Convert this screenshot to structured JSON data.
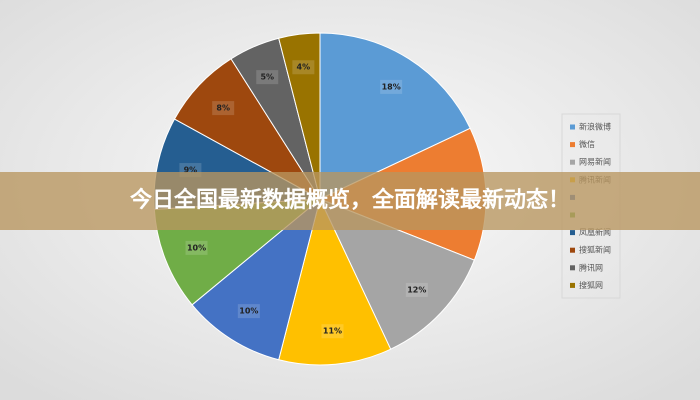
{
  "chart_data": {
    "type": "pie",
    "banner": "今日全国最新数据概览，全面解读最新动态！",
    "series": [
      {
        "name": "新浪微博",
        "color": "#5b9bd5"
      },
      {
        "name": "微信",
        "color": "#ed7d31"
      },
      {
        "name": "网易新闻",
        "color": "#a5a5a5"
      },
      {
        "name": "腾讯新闻",
        "color": "#ffc000"
      },
      {
        "name": null,
        "color": "#4472c4"
      },
      {
        "name": null,
        "color": "#70ad47"
      },
      {
        "name": "凤凰新闻",
        "color": "#255e91"
      },
      {
        "name": "搜狐新闻",
        "color": "#9e480e"
      },
      {
        "name": "腾讯网",
        "color": "#636363"
      },
      {
        "name": "搜狐网",
        "color": "#997300"
      }
    ],
    "values": [
      18,
      13,
      12,
      11,
      10,
      10,
      9,
      8,
      5,
      4
    ],
    "value_labels": [
      "18%",
      null,
      "12%",
      "11%",
      "10%",
      "10%",
      "9%",
      "8%",
      "5%",
      "4%"
    ]
  }
}
